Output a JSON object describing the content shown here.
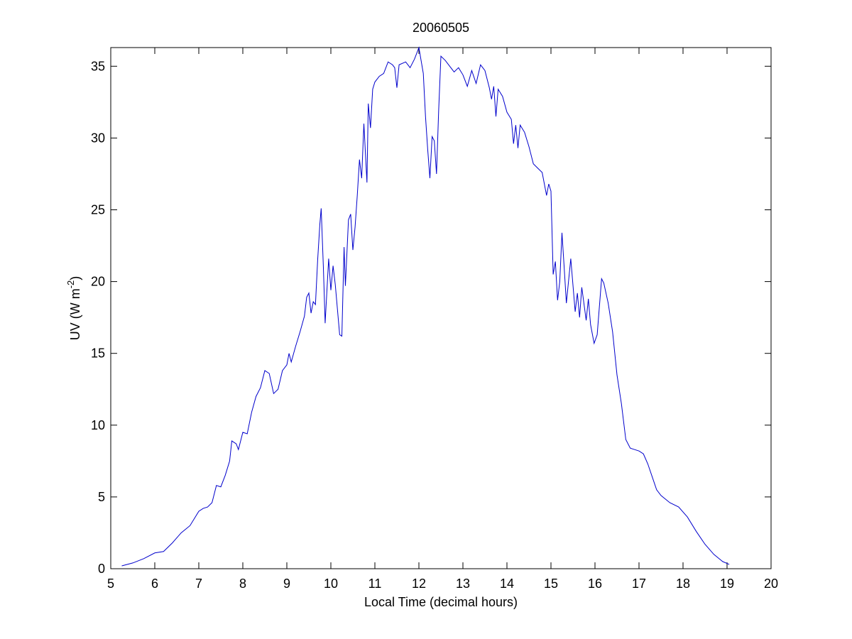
{
  "chart_data": {
    "type": "line",
    "title": "20060505",
    "xlabel": "Local Time (decimal hours)",
    "ylabel": {
      "text": "UV (W m",
      "superscript": "-2",
      "suffix": ")"
    },
    "color": "#0000cc",
    "xlim": [
      5,
      20
    ],
    "xticks": [
      5,
      6,
      7,
      8,
      9,
      10,
      11,
      12,
      13,
      14,
      15,
      16,
      17,
      18,
      19,
      20
    ],
    "ylim": [
      0,
      36.3
    ],
    "yticks": [
      0,
      5,
      10,
      15,
      20,
      25,
      30,
      35
    ],
    "grid": false,
    "x": [
      5.25,
      5.5,
      5.75,
      6.0,
      6.2,
      6.4,
      6.6,
      6.8,
      7.0,
      7.1,
      7.2,
      7.3,
      7.4,
      7.5,
      7.6,
      7.7,
      7.75,
      7.85,
      7.9,
      8.0,
      8.1,
      8.2,
      8.3,
      8.4,
      8.5,
      8.6,
      8.7,
      8.8,
      8.9,
      9.0,
      9.05,
      9.1,
      9.2,
      9.3,
      9.4,
      9.45,
      9.5,
      9.55,
      9.6,
      9.65,
      9.7,
      9.75,
      9.78,
      9.83,
      9.87,
      9.95,
      10.0,
      10.05,
      10.1,
      10.2,
      10.25,
      10.3,
      10.33,
      10.4,
      10.45,
      10.5,
      10.55,
      10.6,
      10.65,
      10.7,
      10.75,
      10.82,
      10.85,
      10.9,
      10.95,
      11.0,
      11.1,
      11.2,
      11.3,
      11.4,
      11.45,
      11.5,
      11.55,
      11.7,
      11.8,
      11.9,
      12.0,
      12.1,
      12.15,
      12.2,
      12.25,
      12.3,
      12.35,
      12.4,
      12.45,
      12.5,
      12.6,
      12.7,
      12.8,
      12.9,
      13.0,
      13.1,
      13.2,
      13.3,
      13.4,
      13.5,
      13.6,
      13.65,
      13.7,
      13.75,
      13.8,
      13.9,
      14.0,
      14.1,
      14.15,
      14.2,
      14.25,
      14.3,
      14.4,
      14.5,
      14.6,
      14.7,
      14.8,
      14.9,
      14.95,
      15.0,
      15.05,
      15.1,
      15.15,
      15.2,
      15.25,
      15.3,
      15.35,
      15.45,
      15.55,
      15.6,
      15.65,
      15.7,
      15.8,
      15.85,
      15.9,
      15.98,
      16.05,
      16.15,
      16.2,
      16.3,
      16.4,
      16.5,
      16.6,
      16.7,
      16.8,
      16.9,
      17.0,
      17.1,
      17.2,
      17.3,
      17.4,
      17.5,
      17.7,
      17.9,
      18.1,
      18.3,
      18.5,
      18.7,
      18.9,
      19.05
    ],
    "values": [
      0.2,
      0.4,
      0.7,
      1.1,
      1.2,
      1.8,
      2.5,
      3.0,
      4.0,
      4.2,
      4.3,
      4.6,
      5.8,
      5.7,
      6.5,
      7.5,
      8.9,
      8.7,
      8.3,
      9.5,
      9.4,
      10.9,
      12.0,
      12.6,
      13.8,
      13.6,
      12.2,
      12.5,
      13.8,
      14.2,
      15.0,
      14.4,
      15.5,
      16.5,
      17.6,
      18.9,
      19.2,
      17.8,
      18.6,
      18.4,
      21.5,
      24.0,
      25.1,
      21.0,
      17.1,
      21.6,
      19.4,
      21.1,
      19.8,
      16.3,
      16.2,
      22.4,
      19.7,
      24.3,
      24.7,
      22.2,
      23.8,
      26.0,
      28.5,
      27.2,
      31.0,
      26.9,
      32.4,
      30.7,
      33.4,
      33.9,
      34.3,
      34.5,
      35.3,
      35.1,
      34.9,
      33.5,
      35.1,
      35.3,
      34.9,
      35.5,
      36.3,
      34.5,
      31.5,
      29.2,
      27.2,
      30.1,
      29.8,
      27.5,
      32.0,
      35.7,
      35.4,
      35.0,
      34.6,
      34.9,
      34.4,
      33.6,
      34.7,
      33.8,
      35.1,
      34.7,
      33.5,
      32.7,
      33.6,
      31.5,
      33.4,
      32.9,
      31.8,
      31.3,
      29.6,
      30.9,
      29.3,
      30.9,
      30.4,
      29.4,
      28.2,
      27.9,
      27.6,
      26.0,
      26.8,
      26.3,
      20.5,
      21.4,
      18.7,
      20.0,
      23.4,
      21.0,
      18.5,
      21.6,
      17.9,
      19.2,
      17.5,
      19.6,
      17.3,
      18.8,
      17.0,
      15.7,
      16.3,
      20.2,
      19.9,
      18.5,
      16.5,
      13.5,
      11.5,
      9.0,
      8.4,
      8.3,
      8.2,
      8.0,
      7.3,
      6.4,
      5.5,
      5.1,
      4.6,
      4.3,
      3.6,
      2.6,
      1.7,
      1.0,
      0.5,
      0.3
    ]
  }
}
